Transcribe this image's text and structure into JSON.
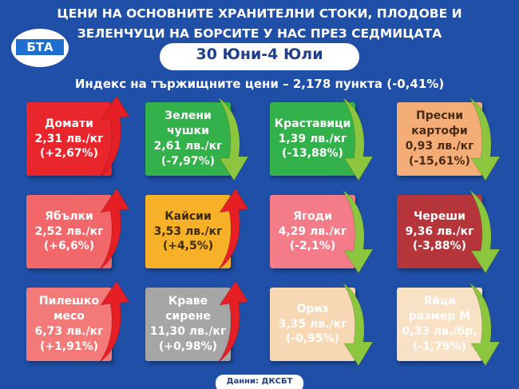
{
  "header": {
    "title_lines": [
      "ЦЕНИ НА ОСНОВНИТЕ ХРАНИТЕЛНИ СТОКИ, ПЛОДОВЕ И",
      "ЗЕЛЕНЧУЦИ НА БОРСИТЕ У НАС ПРЕЗ СЕДМИЦАТА"
    ],
    "date": "30 Юни-4 Юли",
    "logo": "БТА"
  },
  "index_line": "Индекс на тържищните цени – 2,178 пункта (-0,41%)",
  "cards": [
    {
      "name": "Домати",
      "price": "2,31 лв./кг",
      "change": "(+2,67%)",
      "trend": "up",
      "color": "#e8262b",
      "text_color": "#ffffff"
    },
    {
      "name": "Зелени чушки",
      "price": "2,61 лв./кг",
      "change": "(-7,97%)",
      "trend": "down",
      "color": "#33b14a",
      "text_color": "#ffffff"
    },
    {
      "name": "Краставици",
      "price": "1,39 лв./кг",
      "change": "(-13,88%)",
      "trend": "down",
      "color": "#33b14a",
      "text_color": "#ffffff"
    },
    {
      "name": "Пресни картофи",
      "price": "0,93 лв./кг",
      "change": "(-15,61%)",
      "trend": "down",
      "color": "#f4ad76",
      "text_color": "#4a2a12"
    },
    {
      "name": "Ябълки",
      "price": "2,52 лв./кг",
      "change": "(+6,6%)",
      "trend": "up",
      "color": "#f2686a",
      "text_color": "#ffffff"
    },
    {
      "name": "Кайсии",
      "price": "3,53 лв./кг",
      "change": "(+4,5%)",
      "trend": "up",
      "color": "#f6b128",
      "text_color": "#3d2a08"
    },
    {
      "name": "Ягоди",
      "price": "4,29 лв./кг",
      "change": "(-2,1%)",
      "trend": "down",
      "color": "#f47c88",
      "text_color": "#ffffff"
    },
    {
      "name": "Череши",
      "price": "9,36 лв./кг",
      "change": "(-3,88%)",
      "trend": "down",
      "color": "#b5353b",
      "text_color": "#ffffff"
    },
    {
      "name": "Пилешко месо",
      "price": "6,73 лв./кг",
      "change": "(+1,91%)",
      "trend": "up",
      "color": "#f47a7a",
      "text_color": "#ffffff"
    },
    {
      "name": "Краве сирене",
      "price": "11,30 лв./кг",
      "change": "(+0,98%)",
      "trend": "up",
      "color": "#a6a6a6",
      "text_color": "#ffffff"
    },
    {
      "name": "Ориз",
      "price": "3,35 лв./кг",
      "change": "(-0,95%)",
      "trend": "down",
      "color": "#f8d8b4",
      "text_color": "#ffffff"
    },
    {
      "name": "Яйца размер М",
      "price": "0,33 лв./бр.",
      "change": "(-1,79%)",
      "trend": "down",
      "color": "#f9e1c6",
      "text_color": "#ffffff"
    }
  ],
  "source": "Данни: ДКСБТ"
}
